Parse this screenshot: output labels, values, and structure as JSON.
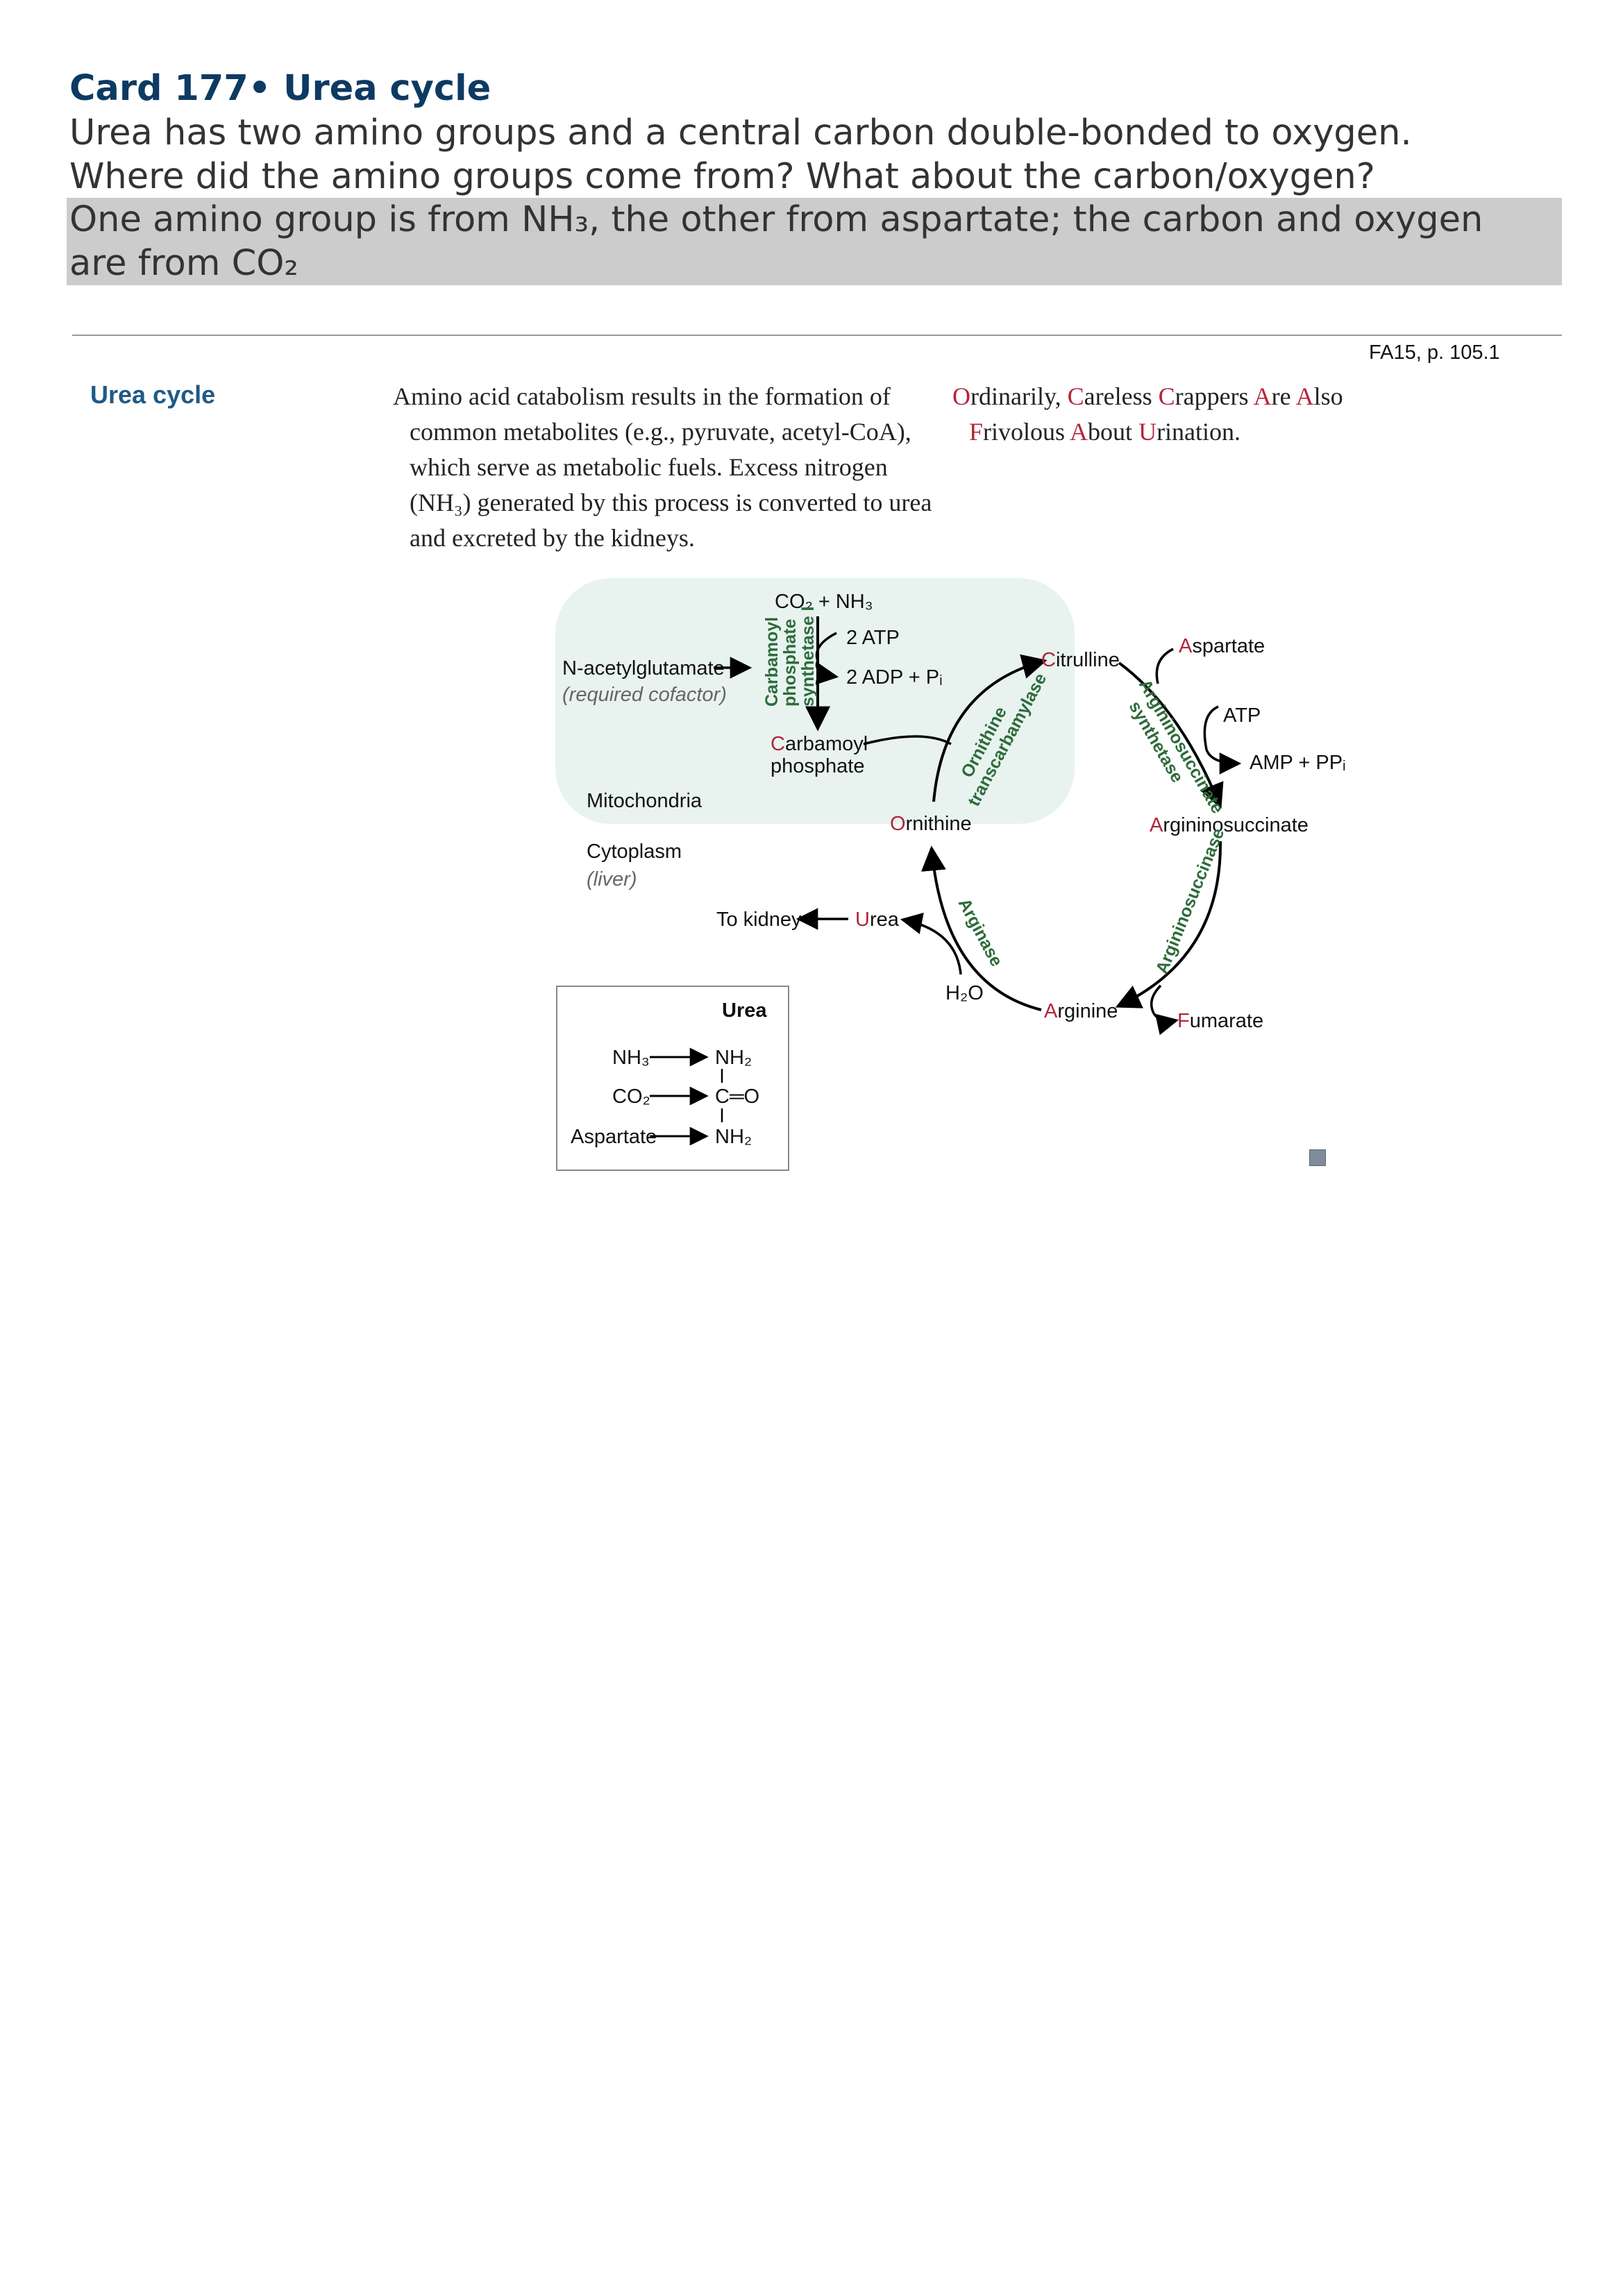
{
  "card": {
    "title": "Card 177• Urea cycle",
    "question_line1": "Urea has two amino groups and a central carbon double-bonded to oxygen.",
    "question_line2": "Where did the amino groups come from? What about the carbon/oxygen?",
    "answer_line1": "One amino group is from NH₃, the other from aspartate; the carbon and oxygen",
    "answer_line2": "are from CO₂"
  },
  "source": "FA15, p. 105.1",
  "section": {
    "title": "Urea cycle",
    "body": "Amino acid catabolism results in the formation of common metabolites (e.g., pyruvate, acetyl-CoA), which serve as metabolic fuels. Excess nitrogen (NH₃) generated by this process is converted to urea and excreted by the kidneys.",
    "mnemonic": {
      "words": [
        {
          "first": "O",
          "rest": "rdinarily, "
        },
        {
          "first": "C",
          "rest": "areless "
        },
        {
          "first": "C",
          "rest": "rappers "
        },
        {
          "first": "A",
          "rest": "re "
        },
        {
          "first": "A",
          "rest": "lso "
        },
        {
          "first": "F",
          "rest": "rivolous "
        },
        {
          "first": "A",
          "rest": "bout "
        },
        {
          "first": "U",
          "rest": "rination."
        }
      ]
    }
  },
  "diagram": {
    "co2_nh3": "CO₂ + NH₃",
    "atp2": "2 ATP",
    "adp_pi": "2 ADP + Pᵢ",
    "cps1_line1": "Carbamoyl",
    "cps1_line2": "phosphate",
    "cps1_line3": "synthetase I",
    "nag": "N-acetylglutamate",
    "nag_note": "(required cofactor)",
    "carbamoyl_phosphate_1": "arbamoyl",
    "carbamoyl_phosphate_first": "C",
    "carbamoyl_phosphate_2": "phosphate",
    "mitochondria": "Mitochondria",
    "cytoplasm": "Cytoplasm",
    "liver": "(liver)",
    "ornithine_first": "O",
    "ornithine_rest": "rnithine",
    "otc_line1": "Ornithine",
    "otc_line2": "transcarbamylase",
    "citrulline_first": "C",
    "citrulline_rest": "itrulline",
    "aspartate_first": "A",
    "aspartate_rest": "spartate",
    "ass_line1": "Argininosuccinate",
    "ass_line2": "synthetase",
    "atp": "ATP",
    "amp_ppi": "AMP + PPᵢ",
    "argininosuccinate_first": "A",
    "argininosuccinate_rest": "rgininosuccinate",
    "asl": "Argininosuccinase",
    "fumarate_first": "F",
    "fumarate_rest": "umarate",
    "arginine_first": "A",
    "arginine_rest": "rginine",
    "h2o": "H₂O",
    "arginase": "Arginase",
    "urea_first": "U",
    "urea_rest": "rea",
    "to_kidney": "To kidney",
    "box_title": "Urea",
    "box_nh3": "NH₃",
    "box_co2": "CO₂",
    "box_aspartate": "Aspartate",
    "box_nh2_top": "NH₂",
    "box_c_o": "C═O",
    "box_nh2_bottom": "NH₂"
  },
  "colors": {
    "title": "#0d3a63",
    "section_title": "#1f5a87",
    "mnemonic_highlight": "#b3243a",
    "enzyme_green": "#2e6b3a",
    "mito_fill": "#e8f3f0",
    "answer_bg": "#cccccc"
  }
}
